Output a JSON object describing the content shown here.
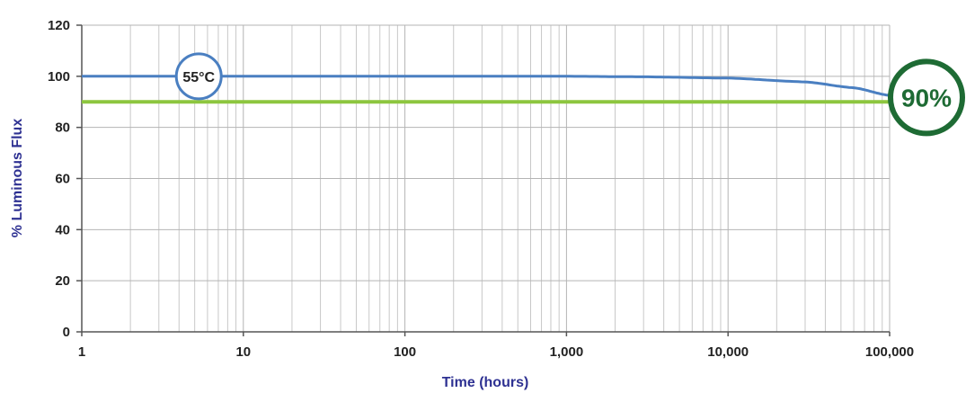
{
  "chart_data": {
    "type": "line",
    "xlabel": "Time (hours)",
    "ylabel": "% Luminous Flux",
    "x_scale": "log",
    "xlim": [
      1,
      100000
    ],
    "ylim": [
      0,
      120
    ],
    "grid": true,
    "x_ticks": [
      {
        "value": 1,
        "label": "1"
      },
      {
        "value": 10,
        "label": "10"
      },
      {
        "value": 100,
        "label": "100"
      },
      {
        "value": 1000,
        "label": "1,000"
      },
      {
        "value": 10000,
        "label": "10,000"
      },
      {
        "value": 100000,
        "label": "100,000"
      }
    ],
    "y_ticks": [
      {
        "value": 0,
        "label": "0"
      },
      {
        "value": 20,
        "label": "20"
      },
      {
        "value": 40,
        "label": "40"
      },
      {
        "value": 60,
        "label": "60"
      },
      {
        "value": 80,
        "label": "80"
      },
      {
        "value": 100,
        "label": "100"
      },
      {
        "value": 120,
        "label": "120"
      }
    ],
    "series": [
      {
        "color": "#4a7fc1",
        "x": [
          1,
          10,
          100,
          1000,
          3000,
          10000,
          30000,
          60000,
          100000
        ],
        "y": [
          100,
          100,
          100,
          100,
          99.8,
          99.3,
          97.8,
          95.5,
          92.5
        ]
      }
    ],
    "reference_line": {
      "value": 90,
      "color": "#8dc63f"
    },
    "annotations": [
      {
        "text": "55°C",
        "x": 5.3,
        "y": 100,
        "color": "#4a7fc1"
      },
      {
        "text": "90%",
        "x": 100000,
        "y": 91,
        "color": "#1e6b34"
      }
    ]
  },
  "colors": {
    "axis_title": "#2e3192",
    "grid": "#c8c8c8",
    "axis": "#555555"
  }
}
